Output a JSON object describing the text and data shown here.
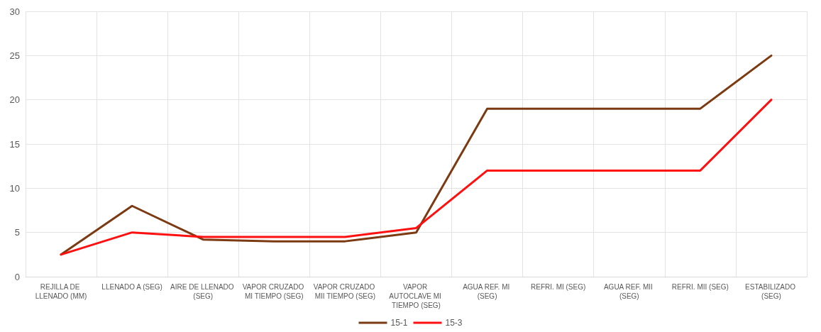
{
  "chart_data": {
    "type": "line",
    "categories": [
      "REJILLA DE LLENADO (MM)",
      "LLENADO A (SEG)",
      "AIRE DE LLENADO (SEG)",
      "VAPOR CRUZADO MI TIEMPO (SEG)",
      "VAPOR CRUZADO MII TIEMPO (SEG)",
      "VAPOR AUTOCLAVE MI TIEMPO (SEG)",
      "AGUA REF. MI (SEG)",
      "REFRI. MI (SEG)",
      "AGUA REF. MII (SEG)",
      "REFRI. MII (SEG)",
      "ESTABILIZADO (SEG)"
    ],
    "series": [
      {
        "name": "15-1",
        "color": "#7b3a12",
        "values": [
          2.5,
          8,
          4.2,
          4,
          4,
          5,
          19,
          19,
          19,
          19,
          25
        ]
      },
      {
        "name": "15-3",
        "color": "#ff1010",
        "values": [
          2.5,
          5,
          4.5,
          4.5,
          4.5,
          5.5,
          12,
          12,
          12,
          12,
          20
        ]
      }
    ],
    "ylim": [
      0,
      30
    ],
    "yticks": [
      0,
      5,
      10,
      15,
      20,
      25,
      30
    ],
    "grid": true,
    "legend": "bottom",
    "marker": "none",
    "line_style": "solid"
  }
}
